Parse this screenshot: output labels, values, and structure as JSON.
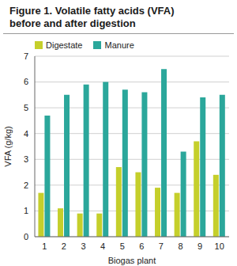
{
  "chart_data": {
    "type": "bar",
    "title": "Figure 1. Volatile fatty acids (VFA)\nbefore and after digestion",
    "x_label": "Biogas plant",
    "y_label": "VFA (g/kg)",
    "categories": [
      "1",
      "2",
      "3",
      "4",
      "5",
      "6",
      "7",
      "8",
      "9",
      "10"
    ],
    "series": [
      {
        "name": "Digestate",
        "color": "#c5cf2b",
        "values": [
          1.7,
          1.1,
          0.9,
          0.9,
          2.7,
          2.5,
          1.9,
          1.7,
          3.7,
          2.4
        ]
      },
      {
        "name": "Manure",
        "color": "#2ba79b",
        "values": [
          4.7,
          5.5,
          5.9,
          6.0,
          5.7,
          5.6,
          6.5,
          3.3,
          5.4,
          5.5
        ]
      }
    ],
    "ylim": [
      0,
      7
    ],
    "yticks": [
      0,
      1,
      2,
      3,
      4,
      5,
      6,
      7
    ],
    "grid": true,
    "legend": "top-left"
  }
}
